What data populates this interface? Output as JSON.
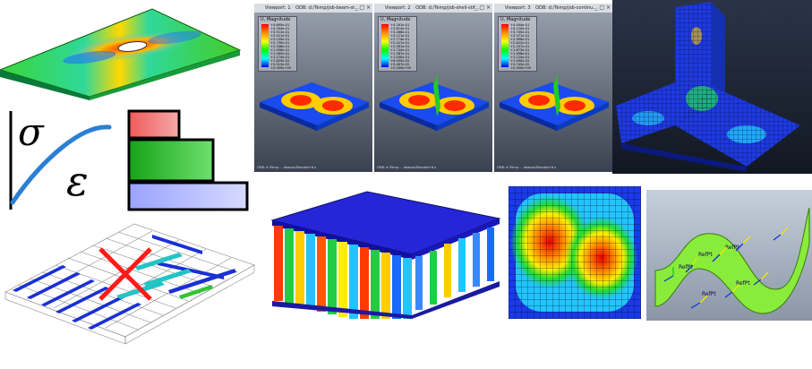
{
  "viewports": [
    {
      "title": "Viewport: 1",
      "odb": "ODB: d:/Temp/job-beam-st...",
      "legend_title": "U, Magnitude",
      "legend_values": [
        "+4.695e-01",
        "+4.304e-01",
        "+3.913e-01",
        "+3.521e-01",
        "+3.130e-01",
        "+2.739e-01",
        "+2.348e-01",
        "+1.956e-01",
        "+1.565e-01",
        "+1.174e-01",
        "+7.825e-02",
        "+3.913e-02",
        "+0.000e+00"
      ]
    },
    {
      "title": "Viewport: 2",
      "odb": "ODB: d:/Temp/job-shell-stif...",
      "legend_title": "U, Magnitude",
      "legend_values": [
        "+4.161e-01",
        "+3.814e-01",
        "+3.468e-01",
        "+3.121e-01",
        "+2.774e-01",
        "+2.427e-01",
        "+2.081e-01",
        "+1.734e-01",
        "+1.387e-01",
        "+1.040e-01",
        "+6.935e-02",
        "+3.467e-02",
        "+0.000e+00"
      ]
    },
    {
      "title": "Viewport: 3",
      "odb": "ODB: d:/Temp/job-continu...",
      "legend_title": "U, Magnitude",
      "legend_values": [
        "+4.494e-01",
        "+4.120e-01",
        "+3.745e-01",
        "+3.371e-01",
        "+2.996e-01",
        "+2.622e-01",
        "+2.247e-01",
        "+1.873e-01",
        "+1.498e-01",
        "+1.124e-01",
        "+7.490e-02",
        "+3.745e-02",
        "+0.000e+00"
      ]
    }
  ],
  "material_symbols": {
    "sigma": "σ",
    "epsilon": "ε"
  },
  "reference_points": [
    "RefPt",
    "RefPt",
    "RefPt",
    "RefPt",
    "RefPt"
  ],
  "colors": {
    "fe_blue": "#1a2fd6",
    "fe_red": "#e81010",
    "fe_green": "#22c422",
    "fe_yellow": "#f2e600",
    "curve_blue": "#2a7fd4"
  }
}
